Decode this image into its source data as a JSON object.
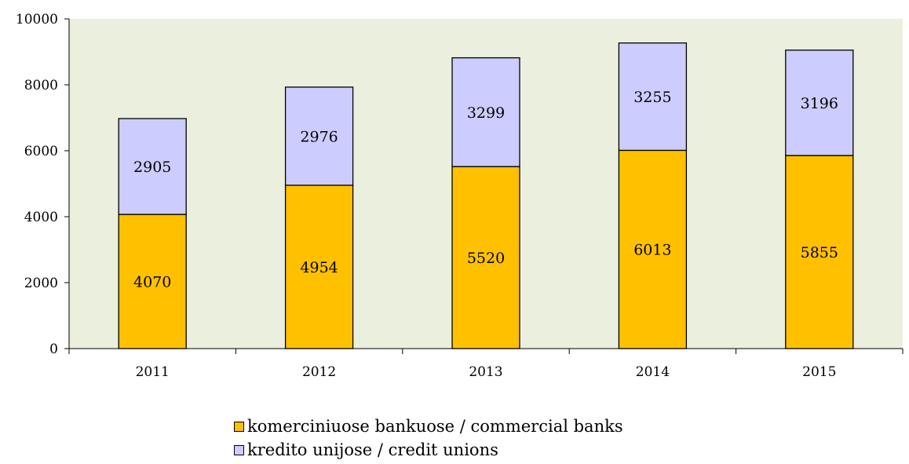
{
  "chart_data": {
    "type": "bar",
    "stacked": true,
    "categories": [
      "2011",
      "2012",
      "2013",
      "2014",
      "2015"
    ],
    "series": [
      {
        "name": "komerciniuose bankuose / commercial banks",
        "values": [
          4070,
          4954,
          5520,
          6013,
          5855
        ],
        "color": "#FFC000"
      },
      {
        "name": "kredito unijose / credit unions",
        "values": [
          2905,
          2976,
          3299,
          3255,
          3196
        ],
        "color": "#CCCCFF"
      }
    ],
    "ylim": [
      0,
      10000
    ],
    "yticks": [
      0,
      2000,
      4000,
      6000,
      8000,
      10000
    ],
    "plot_background": "#EBEFDD",
    "grid": false,
    "legend_position": "bottom"
  }
}
